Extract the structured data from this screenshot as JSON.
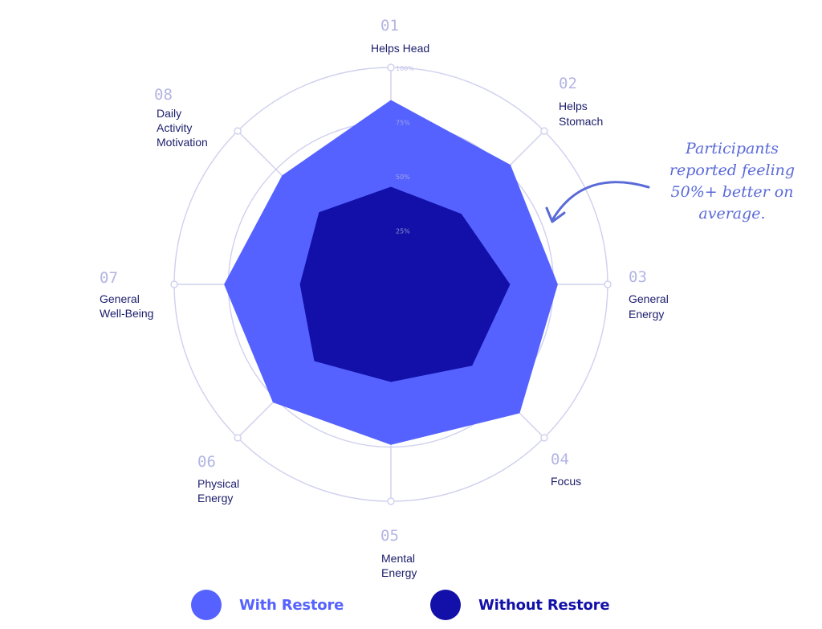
{
  "chart_data": {
    "type": "radar",
    "axes": [
      {
        "number": "01",
        "label_lines": [
          "Helps Head"
        ]
      },
      {
        "number": "02",
        "label_lines": [
          "Helps",
          "Stomach"
        ]
      },
      {
        "number": "03",
        "label_lines": [
          "General",
          "Energy"
        ]
      },
      {
        "number": "04",
        "label_lines": [
          "Focus"
        ]
      },
      {
        "number": "05",
        "label_lines": [
          "Mental",
          "Energy"
        ]
      },
      {
        "number": "06",
        "label_lines": [
          "Physical",
          "Energy"
        ]
      },
      {
        "number": "07",
        "label_lines": [
          "General",
          "Well-Being"
        ]
      },
      {
        "number": "08",
        "label_lines": [
          "Daily",
          "Activity",
          "Motivation"
        ]
      }
    ],
    "rings": [
      25,
      50,
      75,
      100
    ],
    "ring_labels": [
      "25%",
      "50%",
      "75%",
      "100%"
    ],
    "range": [
      0,
      100
    ],
    "series": [
      {
        "name": "With Restore",
        "color": "#5562ff",
        "values": [
          85,
          78,
          77,
          84,
          74,
          77,
          77,
          71
        ]
      },
      {
        "name": "Without Restore",
        "color": "#1210a8",
        "values": [
          45,
          46,
          55,
          53,
          45,
          50,
          42,
          47
        ]
      }
    ],
    "legend_position": "bottom",
    "annotation": {
      "lines": [
        "Participants",
        "reported feeling",
        "50%+ better on",
        "average."
      ],
      "color": "#5a6ad8"
    },
    "grid_color": "#cfd0ee",
    "number_color": "#b3b5e3",
    "label_color": "#1b1d6b"
  }
}
